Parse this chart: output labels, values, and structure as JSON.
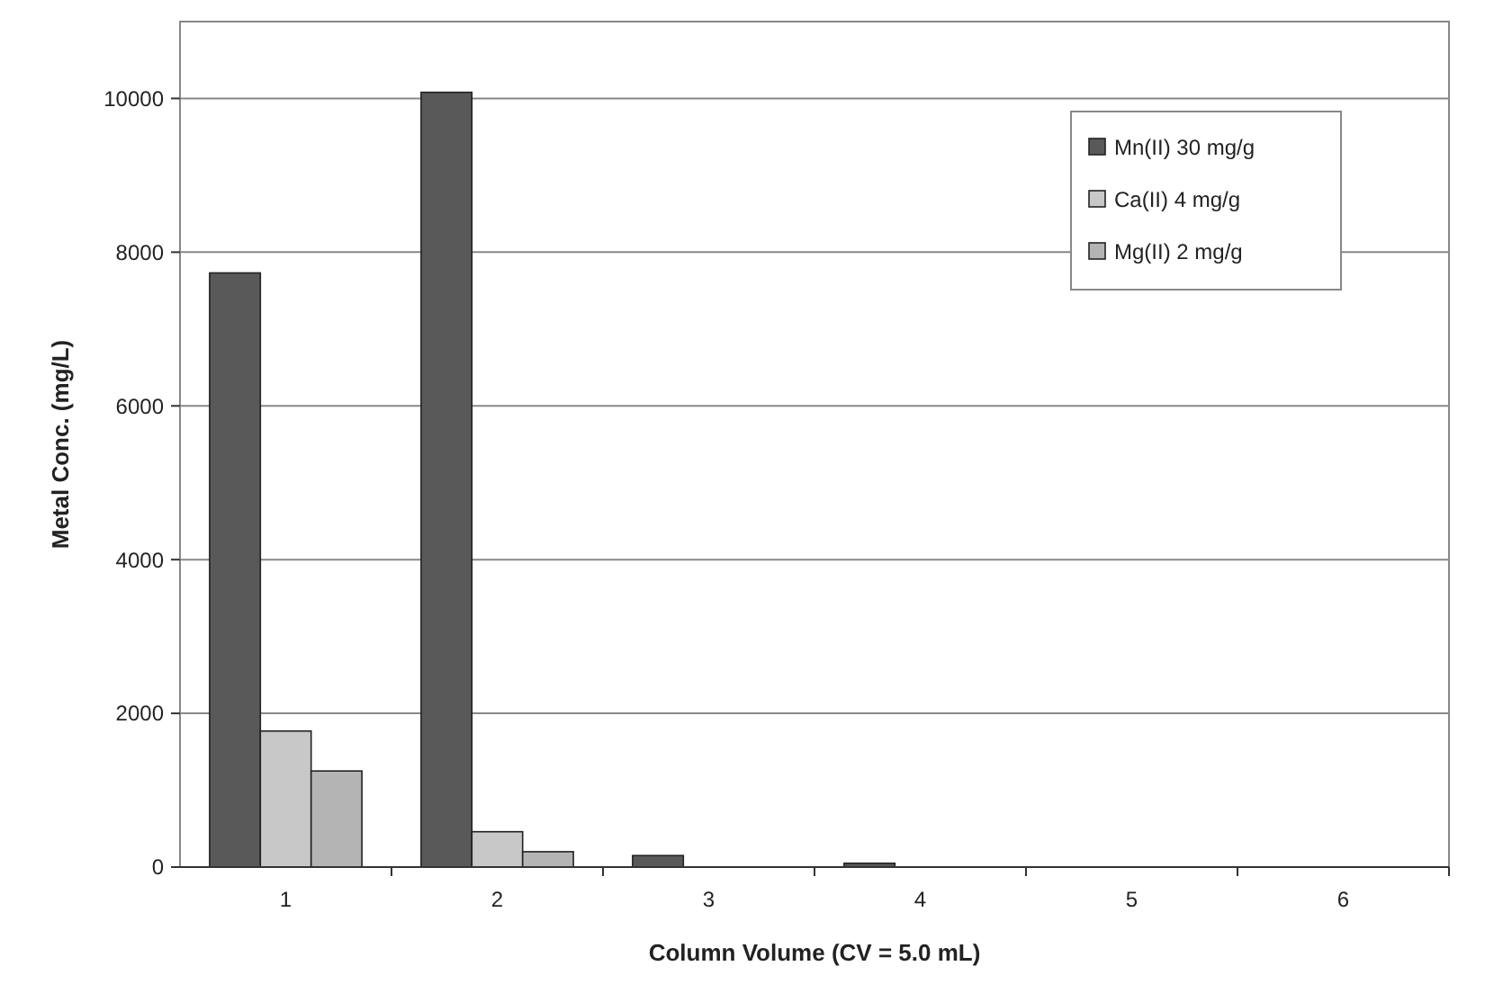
{
  "chart_data": {
    "type": "bar",
    "xlabel": "Column Volume (CV = 5.0 mL)",
    "ylabel": "Metal Conc. (mg/L)",
    "categories": [
      "1",
      "2",
      "3",
      "4",
      "5",
      "6"
    ],
    "series": [
      {
        "name": "Mn(II) 30 mg/g",
        "color": "#595959",
        "values": [
          7730,
          10080,
          150,
          50,
          0,
          0
        ]
      },
      {
        "name": "Ca(II) 4 mg/g",
        "color": "#c8c8c8",
        "values": [
          1770,
          460,
          0,
          0,
          0,
          0
        ]
      },
      {
        "name": "Mg(II) 2 mg/g",
        "color": "#b4b4b4",
        "values": [
          1250,
          200,
          0,
          0,
          0,
          0
        ]
      }
    ],
    "ylim": [
      0,
      11000
    ],
    "yticks": [
      0,
      2000,
      4000,
      6000,
      8000,
      10000
    ],
    "grid": "y",
    "legend": "top right"
  }
}
